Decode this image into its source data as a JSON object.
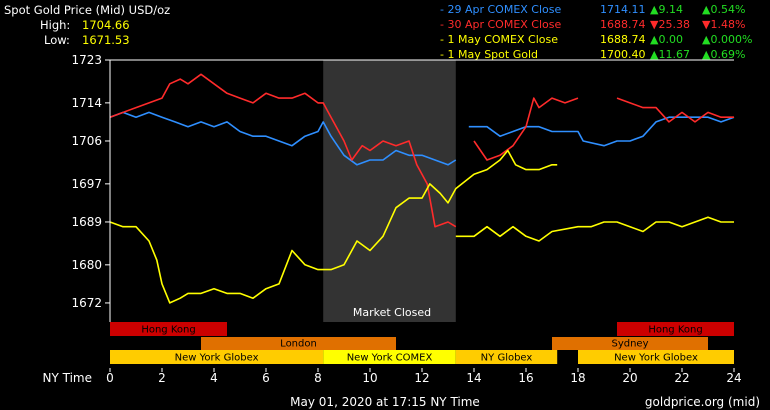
{
  "header": {
    "title": "Spot Gold Price (Mid) USD/oz",
    "high_label": "High:",
    "high_value": "1704.66",
    "low_label": "Low:",
    "low_value": "1671.53"
  },
  "legend": [
    {
      "name": "29 Apr COMEX Close",
      "value": "1714.11",
      "change": "9.14",
      "pct": "0.54%",
      "dir": "up",
      "color": "#2f8fff"
    },
    {
      "name": "30 Apr COMEX Close",
      "value": "1688.74",
      "change": "25.38",
      "pct": "1.48%",
      "dir": "down",
      "color": "#ff2b2b"
    },
    {
      "name": "1 May COMEX Close",
      "value": "1688.74",
      "change": "0.00",
      "pct": "0.000%",
      "dir": "up",
      "color": "#ffff00"
    },
    {
      "name": "1 May Spot Gold",
      "value": "1700.40",
      "change": "11.67",
      "pct": "0.69%",
      "dir": "up",
      "color": "#ffff00"
    }
  ],
  "footer": {
    "timestamp": "May 01, 2020 at 17:15 NY Time",
    "source": "goldprice.org (mid)"
  },
  "colors": {
    "background": "#000000",
    "closed_band": "#333333",
    "up": "#22dd22",
    "down": "#ff2b2b"
  },
  "chart_data": {
    "type": "line",
    "xlabel": "NY Time",
    "xlim": [
      0,
      24
    ],
    "ylim": [
      1668,
      1723
    ],
    "x_ticks": [
      0,
      2,
      4,
      6,
      8,
      10,
      12,
      14,
      16,
      18,
      20,
      22,
      24
    ],
    "y_ticks": [
      1672,
      1680,
      1689,
      1697,
      1706,
      1714,
      1723
    ],
    "grid": false,
    "market_closed": {
      "from": 8.2,
      "to": 13.3,
      "label": "Market Closed"
    },
    "sessions": [
      {
        "label": "Hong Kong",
        "from": 0,
        "to": 4.5,
        "row": 0,
        "color": "#cc0000"
      },
      {
        "label": "Hong Kong",
        "from": 19.5,
        "to": 24,
        "row": 0,
        "color": "#cc0000"
      },
      {
        "label": "London",
        "from": 3.5,
        "to": 11,
        "row": 1,
        "color": "#e07000"
      },
      {
        "label": "Sydney",
        "from": 17,
        "to": 23,
        "row": 1,
        "color": "#e07000"
      },
      {
        "label": "New York Globex",
        "from": 0,
        "to": 8.2,
        "row": 2,
        "color": "#ffcc00"
      },
      {
        "label": "New York COMEX",
        "from": 8.2,
        "to": 13.3,
        "row": 2,
        "color": "#ffff00"
      },
      {
        "label": "NY Globex",
        "from": 13.3,
        "to": 17.2,
        "row": 2,
        "color": "#ffcc00"
      },
      {
        "label": "New York Globex",
        "from": 18,
        "to": 24,
        "row": 2,
        "color": "#ffcc00"
      }
    ],
    "series": [
      {
        "name": "29 Apr COMEX Close",
        "color": "#2f8fff",
        "segments": [
          [
            [
              0,
              1711
            ],
            [
              0.5,
              1712
            ],
            [
              1,
              1711
            ],
            [
              1.5,
              1712
            ],
            [
              2,
              1711
            ],
            [
              2.5,
              1710
            ],
            [
              3,
              1709
            ],
            [
              3.5,
              1710
            ],
            [
              4,
              1709
            ],
            [
              4.5,
              1710
            ],
            [
              5,
              1708
            ],
            [
              5.5,
              1707
            ],
            [
              6,
              1707
            ],
            [
              6.5,
              1706
            ],
            [
              7,
              1705
            ],
            [
              7.5,
              1707
            ],
            [
              8,
              1708
            ],
            [
              8.2,
              1710
            ],
            [
              8.5,
              1707
            ],
            [
              9,
              1703
            ],
            [
              9.5,
              1701
            ],
            [
              10,
              1702
            ],
            [
              10.5,
              1702
            ],
            [
              11,
              1704
            ],
            [
              11.5,
              1703
            ],
            [
              12,
              1703
            ],
            [
              12.5,
              1702
            ],
            [
              13,
              1701
            ],
            [
              13.3,
              1702
            ]
          ],
          [
            [
              13.8,
              1709
            ],
            [
              14.5,
              1709
            ],
            [
              15,
              1707
            ],
            [
              15.5,
              1708
            ],
            [
              16,
              1709
            ],
            [
              16.5,
              1709
            ],
            [
              17,
              1708
            ],
            [
              18,
              1708
            ],
            [
              18.2,
              1706
            ],
            [
              19,
              1705
            ],
            [
              19.5,
              1706
            ],
            [
              20,
              1706
            ],
            [
              20.5,
              1707
            ],
            [
              21,
              1710
            ],
            [
              21.5,
              1711
            ],
            [
              22,
              1711
            ],
            [
              22.5,
              1711
            ],
            [
              23,
              1711
            ],
            [
              23.5,
              1710
            ],
            [
              24,
              1711
            ]
          ]
        ]
      },
      {
        "name": "30 Apr COMEX Close",
        "color": "#ff2b2b",
        "segments": [
          [
            [
              0,
              1711
            ],
            [
              1,
              1713
            ],
            [
              1.5,
              1714
            ],
            [
              2,
              1715
            ],
            [
              2.3,
              1718
            ],
            [
              2.7,
              1719
            ],
            [
              3,
              1718
            ],
            [
              3.5,
              1720
            ],
            [
              4,
              1718
            ],
            [
              4.5,
              1716
            ],
            [
              5,
              1715
            ],
            [
              5.5,
              1714
            ],
            [
              6,
              1716
            ],
            [
              6.5,
              1715
            ],
            [
              7,
              1715
            ],
            [
              7.5,
              1716
            ],
            [
              8,
              1714
            ],
            [
              8.2,
              1714
            ],
            [
              8.5,
              1711
            ],
            [
              9,
              1706
            ],
            [
              9.3,
              1702
            ],
            [
              9.7,
              1705
            ],
            [
              10,
              1704
            ],
            [
              10.5,
              1706
            ],
            [
              11,
              1705
            ],
            [
              11.5,
              1706
            ],
            [
              11.8,
              1701
            ],
            [
              12.2,
              1697
            ],
            [
              12.5,
              1688
            ],
            [
              13,
              1689
            ],
            [
              13.3,
              1688
            ]
          ],
          [
            [
              14,
              1706
            ],
            [
              14.5,
              1702
            ],
            [
              15,
              1703
            ],
            [
              15.5,
              1705
            ],
            [
              16,
              1709
            ],
            [
              16.3,
              1715
            ],
            [
              16.5,
              1713
            ],
            [
              17,
              1715
            ],
            [
              17.5,
              1714
            ],
            [
              18,
              1715
            ]
          ],
          [
            [
              19.5,
              1715
            ],
            [
              20,
              1714
            ],
            [
              20.5,
              1713
            ],
            [
              21,
              1713
            ],
            [
              21.5,
              1710
            ],
            [
              22,
              1712
            ],
            [
              22.5,
              1710
            ],
            [
              23,
              1712
            ],
            [
              23.5,
              1711
            ],
            [
              24,
              1711
            ]
          ]
        ]
      },
      {
        "name": "1 May Spot Gold",
        "color": "#ffff00",
        "segments": [
          [
            [
              0,
              1689
            ],
            [
              0.5,
              1688
            ],
            [
              1,
              1688
            ],
            [
              1.5,
              1685
            ],
            [
              1.8,
              1681
            ],
            [
              2,
              1676
            ],
            [
              2.3,
              1672
            ],
            [
              2.7,
              1673
            ],
            [
              3,
              1674
            ],
            [
              3.5,
              1674
            ],
            [
              4,
              1675
            ],
            [
              4.5,
              1674
            ],
            [
              5,
              1674
            ],
            [
              5.5,
              1673
            ],
            [
              6,
              1675
            ],
            [
              6.5,
              1676
            ],
            [
              7,
              1683
            ],
            [
              7.5,
              1680
            ],
            [
              8,
              1679
            ],
            [
              8.5,
              1679
            ],
            [
              9,
              1680
            ],
            [
              9.5,
              1685
            ],
            [
              10,
              1683
            ],
            [
              10.5,
              1686
            ],
            [
              11,
              1692
            ],
            [
              11.5,
              1694
            ],
            [
              12,
              1694
            ],
            [
              12.3,
              1697
            ],
            [
              12.7,
              1695
            ],
            [
              13,
              1693
            ],
            [
              13.3,
              1696
            ],
            [
              14,
              1699
            ],
            [
              14.5,
              1700
            ],
            [
              15,
              1702
            ],
            [
              15.3,
              1704
            ],
            [
              15.6,
              1701
            ],
            [
              16,
              1700
            ],
            [
              16.5,
              1700
            ],
            [
              17,
              1701
            ],
            [
              17.2,
              1701
            ]
          ]
        ]
      },
      {
        "name": "1 May COMEX Close",
        "color": "#ffff00",
        "segments": [
          [
            [
              13.3,
              1686
            ],
            [
              14,
              1686
            ],
            [
              14.5,
              1688
            ],
            [
              15,
              1686
            ],
            [
              15.5,
              1688
            ],
            [
              16,
              1686
            ],
            [
              16.5,
              1685
            ],
            [
              17,
              1687
            ],
            [
              18,
              1688
            ],
            [
              18.5,
              1688
            ],
            [
              19,
              1689
            ],
            [
              19.5,
              1689
            ],
            [
              20,
              1688
            ],
            [
              20.5,
              1687
            ],
            [
              21,
              1689
            ],
            [
              21.5,
              1689
            ],
            [
              22,
              1688
            ],
            [
              22.5,
              1689
            ],
            [
              23,
              1690
            ],
            [
              23.5,
              1689
            ],
            [
              24,
              1689
            ]
          ]
        ]
      }
    ]
  }
}
